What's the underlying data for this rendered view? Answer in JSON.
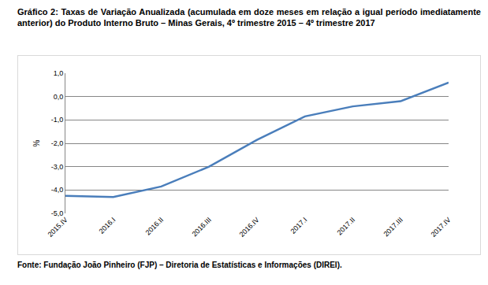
{
  "chart_data": {
    "type": "line",
    "title": "Gráfico 2: Taxas de Variação Anualizada (acumulada em doze meses em relação a igual período imediatamente anterior) do Produto Interno Bruto – Minas Gerais, 4º trimestre 2015 – 4º trimestre 2017",
    "y_label": "%",
    "source": "Fonte: Fundação João Pinheiro (FJP) – Diretoria de Estatísticas e Informações (DIREI).",
    "categories": [
      "2015.IV",
      "2016.I",
      "2016.II",
      "2016.III",
      "2016.IV",
      "2017.I",
      "2017.II",
      "2017.III",
      "2017.IV"
    ],
    "values": [
      -4.25,
      -4.3,
      -3.85,
      -3.0,
      -1.85,
      -0.85,
      -0.42,
      -0.2,
      0.6
    ],
    "color": "#4a7ebb",
    "ylim": [
      -5,
      1
    ],
    "yticks": [
      {
        "value": -5,
        "label": "-5,0"
      },
      {
        "value": -4,
        "label": "-4,0"
      },
      {
        "value": -3,
        "label": "-3,0"
      },
      {
        "value": -2,
        "label": "-2,0"
      },
      {
        "value": -1,
        "label": "-1,0"
      },
      {
        "value": 0,
        "label": "0,0"
      },
      {
        "value": 1,
        "label": "1,0"
      }
    ],
    "grid": true
  }
}
